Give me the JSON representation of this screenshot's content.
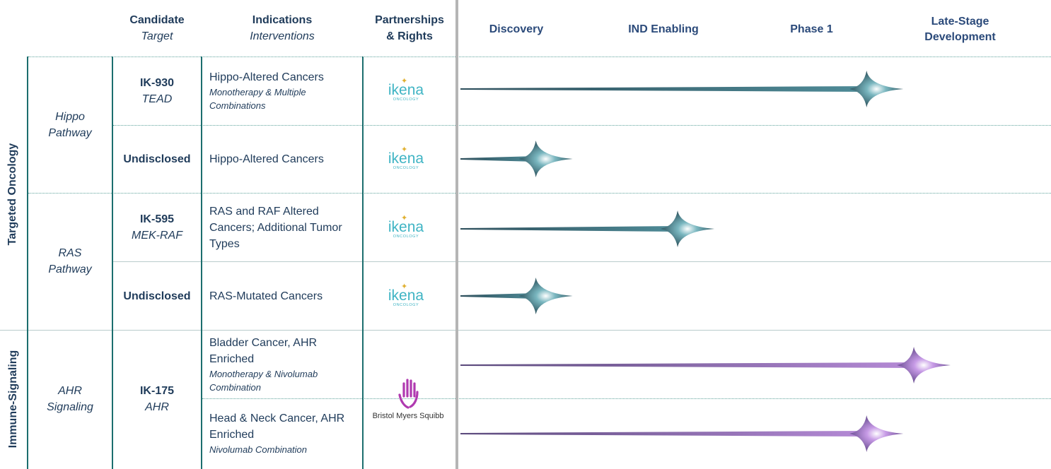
{
  "headers": {
    "candidate": "Candidate",
    "target": "Target",
    "indications": "Indications",
    "interventions": "Interventions",
    "partnerships": "Partnerships",
    "rights": "& Rights"
  },
  "stages": {
    "discovery": "Discovery",
    "ind_enabling": "IND Enabling",
    "phase1": "Phase 1",
    "late_stage_1": "Late-Stage",
    "late_stage_2": "Development"
  },
  "categories": {
    "targeted": "Targeted Oncology",
    "immune": "Immune-Signaling"
  },
  "pathways": {
    "hippo_1": "Hippo",
    "hippo_2": "Pathway",
    "ras_1": "RAS",
    "ras_2": "Pathway",
    "ahr_1": "AHR",
    "ahr_2": "Signaling"
  },
  "rows": [
    {
      "name": "IK-930",
      "target": "TEAD",
      "indication": "Hippo-Altered Cancers",
      "intervention": "Monotherapy & Multiple Combinations",
      "partner": "ikena",
      "progress": 0.75
    },
    {
      "name": "Undisclosed",
      "target": "",
      "indication": "Hippo-Altered Cancers",
      "intervention": "",
      "partner": "ikena",
      "progress": 0.19
    },
    {
      "name": "IK-595",
      "target": "MEK-RAF",
      "indication": "RAS and RAF Altered Cancers; Additional Tumor Types",
      "intervention": "",
      "partner": "ikena",
      "progress": 0.43
    },
    {
      "name": "Undisclosed",
      "target": "",
      "indication": "RAS-Mutated Cancers",
      "intervention": "",
      "partner": "ikena",
      "progress": 0.19
    },
    {
      "name": "IK-175",
      "target": "AHR",
      "indication": "Bladder Cancer, AHR Enriched",
      "intervention": "Monotherapy & Nivolumab Combination",
      "partner": "Bristol Myers Squibb",
      "progress": 0.83
    },
    {
      "name": "IK-175",
      "target": "AHR",
      "indication": "Head & Neck Cancer, AHR Enriched",
      "intervention": "Nivolumab Combination",
      "partner": "Bristol Myers Squibb",
      "progress": 0.75
    }
  ],
  "logos": {
    "ikena_word": "ikena",
    "ikena_sub": "ONCOLOGY",
    "bms": "Bristol Myers Squibb"
  },
  "colors": {
    "teal_bar": "#3d6673",
    "purple_bar": "#7a5a9a",
    "divider": "#1c6e6e"
  }
}
